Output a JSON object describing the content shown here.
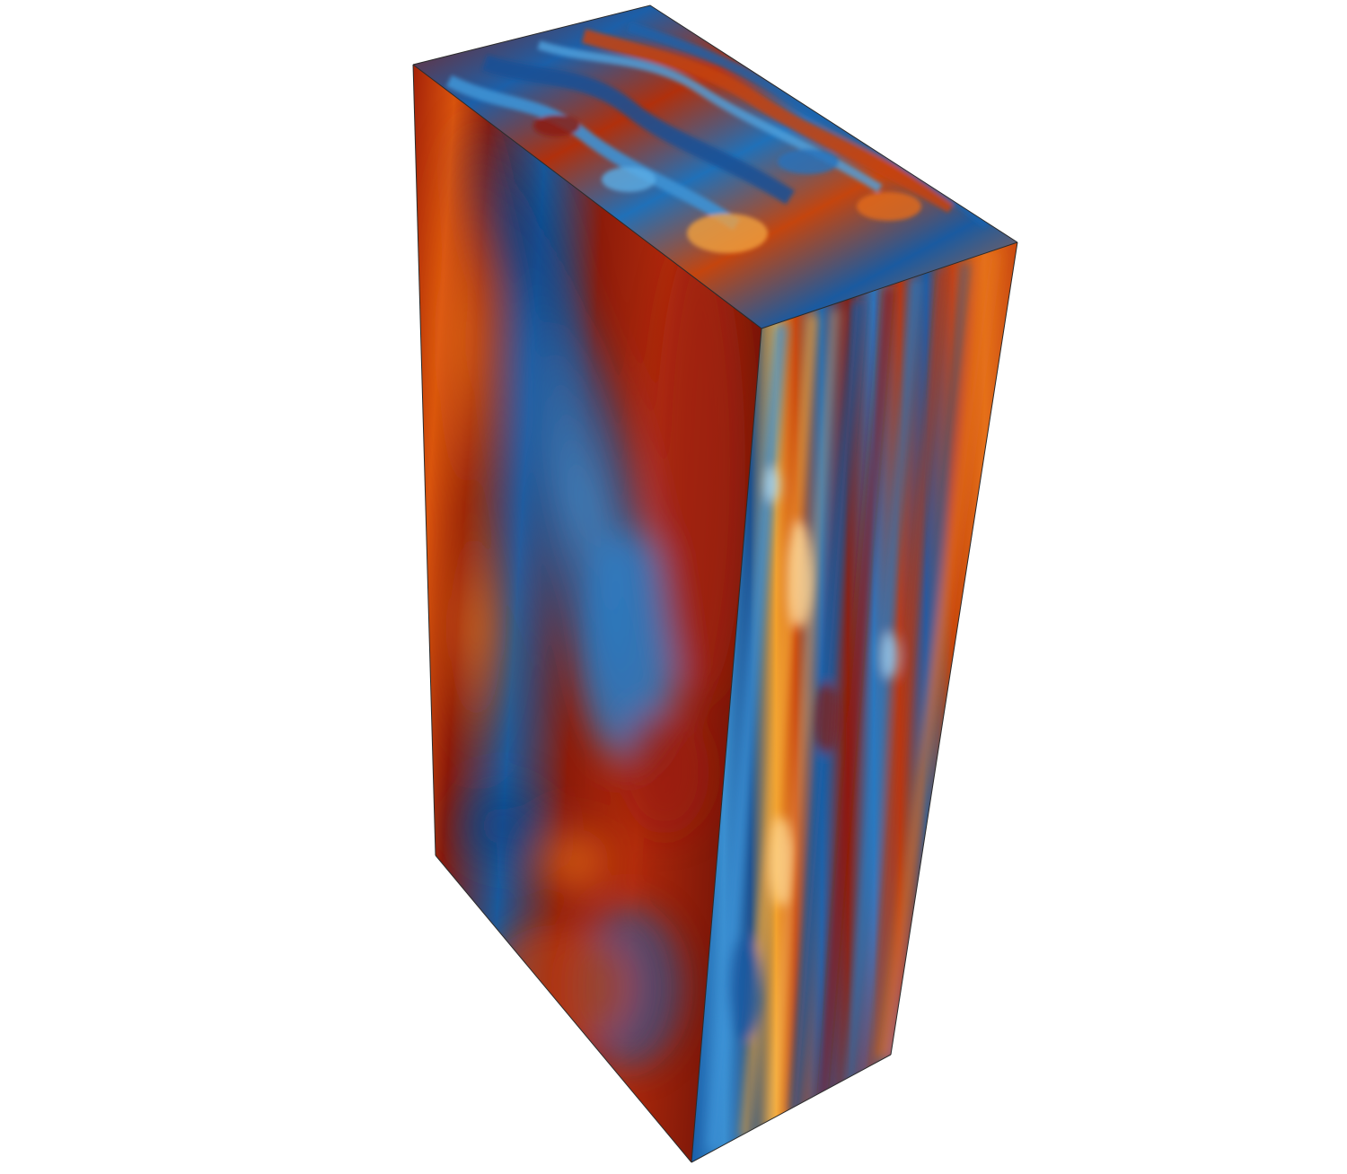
{
  "scene": {
    "background_color": "#ffffff",
    "outline_color": "#2b2b2b",
    "colormap": [
      "#0b3a78",
      "#1f6fb5",
      "#4a9fd6",
      "#7a1208",
      "#b52a0a",
      "#e0600e",
      "#f7a52a",
      "#ffe7a8"
    ],
    "rendering": "volume-render-box",
    "faces": [
      "front-face",
      "side-face",
      "top-face"
    ]
  }
}
